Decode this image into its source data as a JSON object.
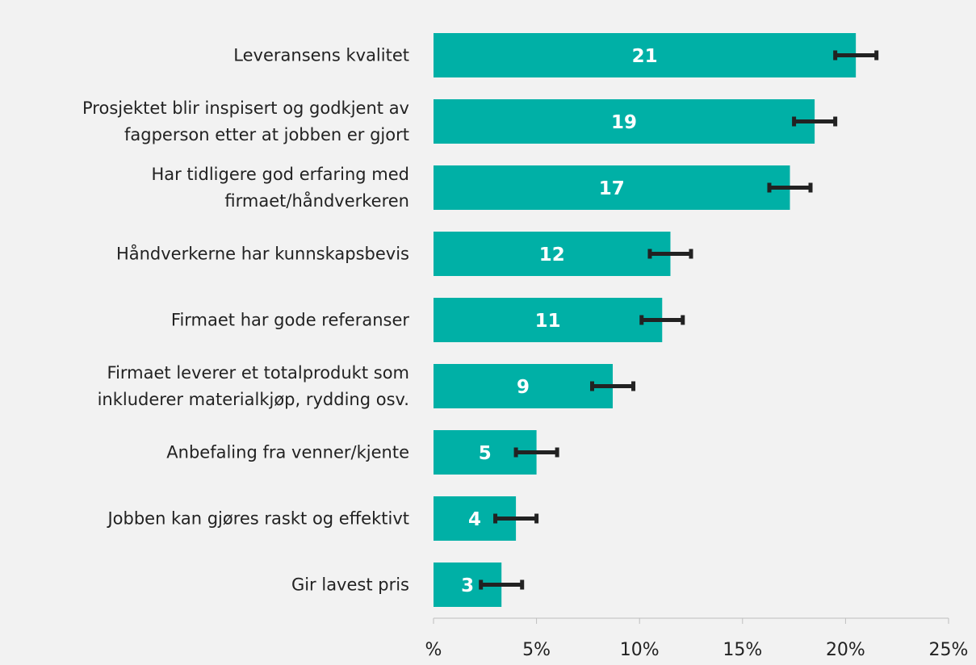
{
  "chart_data": {
    "type": "bar",
    "orientation": "horizontal",
    "categories": [
      "Leveransens kvalitet",
      "Prosjektet blir inspisert og godkjent av\nfagperson etter at jobben er gjort",
      "Har tidligere god erfaring med\nfirmaet/håndverkeren",
      "Håndverkerne har kunnskapsbevis",
      "Firmaet har gode referanser",
      "Firmaet leverer et totalprodukt som\ninkluderer materialkjøp, rydding osv.",
      "Anbefaling fra venner/kjente",
      "Jobben kan gjøres raskt og effektivt",
      "Gir lavest pris"
    ],
    "values": [
      20.5,
      18.5,
      17.3,
      11.5,
      11.1,
      8.7,
      5.0,
      4.0,
      3.3
    ],
    "value_labels": [
      "21",
      "19",
      "17",
      "12",
      "11",
      "9",
      "5",
      "4",
      "3"
    ],
    "errors": [
      1.0,
      1.0,
      1.0,
      1.0,
      1.0,
      1.0,
      1.0,
      1.0,
      1.0
    ],
    "color": "#00b0a6",
    "error_color": "#222222",
    "xlim": [
      0,
      25
    ],
    "xticks": [
      {
        "value": 0,
        "label": "%"
      },
      {
        "value": 5,
        "label": "5%"
      },
      {
        "value": 10,
        "label": "10%"
      },
      {
        "value": 15,
        "label": "15%"
      },
      {
        "value": 20,
        "label": "20%"
      },
      {
        "value": 25,
        "label": "25%"
      }
    ]
  }
}
